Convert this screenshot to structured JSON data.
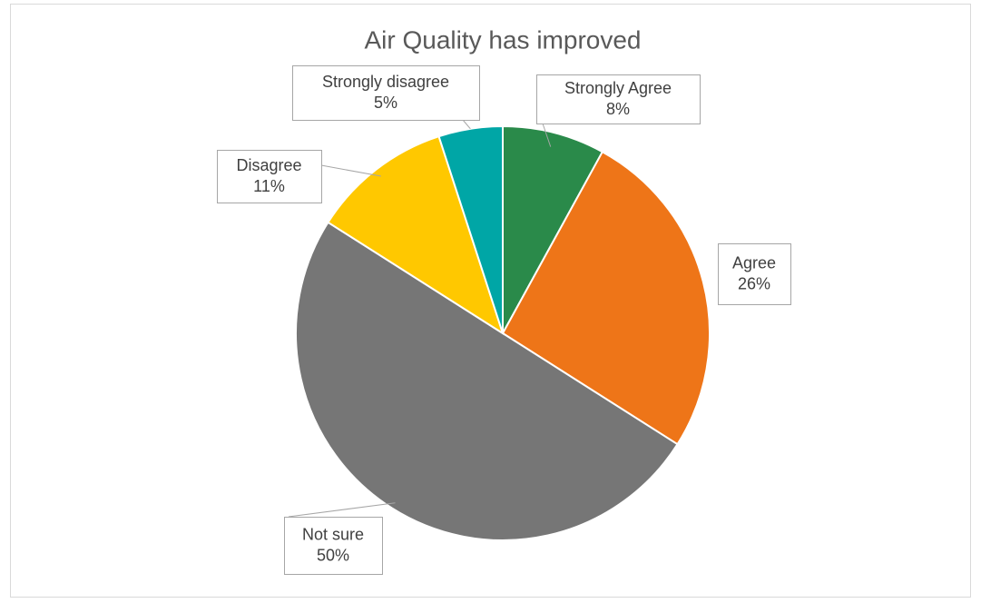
{
  "chart_data": {
    "type": "pie",
    "title": "Air Quality has improved",
    "categories": [
      "Strongly Agree",
      "Agree",
      "Not sure",
      "Disagree",
      "Strongly disagree"
    ],
    "values": [
      8,
      26,
      50,
      11,
      5
    ],
    "value_labels": [
      "8%",
      "26%",
      "50%",
      "11%",
      "5%"
    ],
    "colors": [
      "#2a8a4a",
      "#ee7518",
      "#767676",
      "#ffc800",
      "#00a6a6"
    ]
  }
}
